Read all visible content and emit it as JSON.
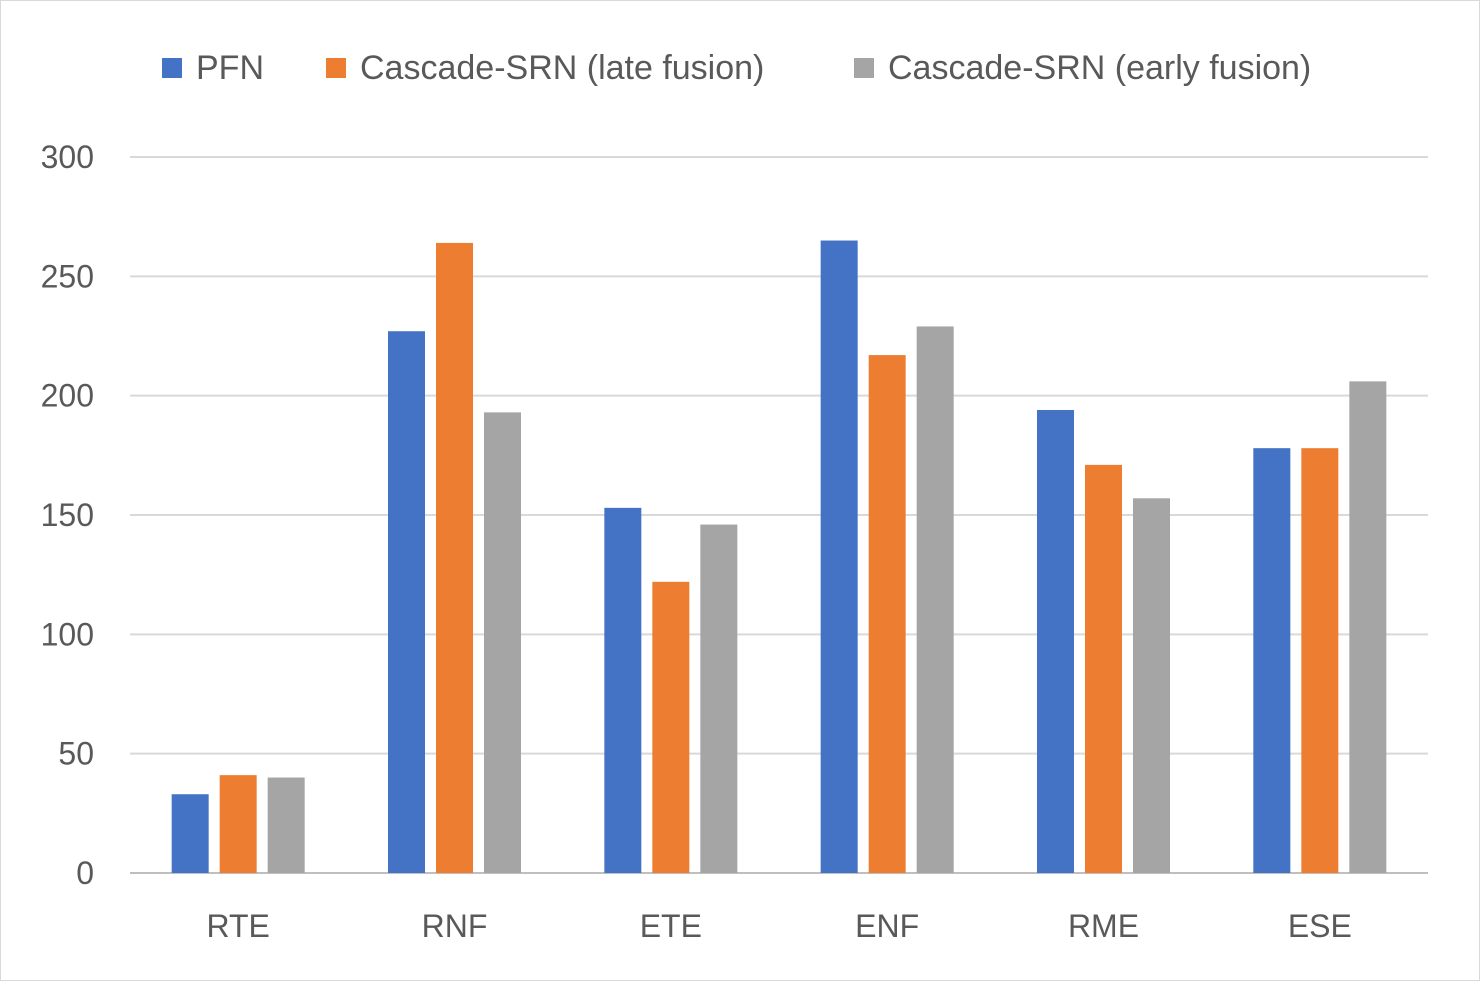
{
  "chart_data": {
    "type": "bar",
    "title": "",
    "xlabel": "",
    "ylabel": "",
    "categories": [
      "RTE",
      "RNF",
      "ETE",
      "ENF",
      "RME",
      "ESE"
    ],
    "series": [
      {
        "name": "PFN",
        "color": "#4472C4",
        "values": [
          33,
          227,
          153,
          265,
          194,
          178
        ]
      },
      {
        "name": "Cascade-SRN (late fusion)",
        "color": "#ED7D31",
        "values": [
          41,
          264,
          122,
          217,
          171,
          178
        ]
      },
      {
        "name": "Cascade-SRN (early fusion)",
        "color": "#A5A5A5",
        "values": [
          40,
          193,
          146,
          229,
          157,
          206
        ]
      }
    ],
    "ylim": [
      0,
      300
    ],
    "yticks": [
      0,
      50,
      100,
      150,
      200,
      250,
      300
    ],
    "grid": true,
    "legend_position": "top"
  }
}
